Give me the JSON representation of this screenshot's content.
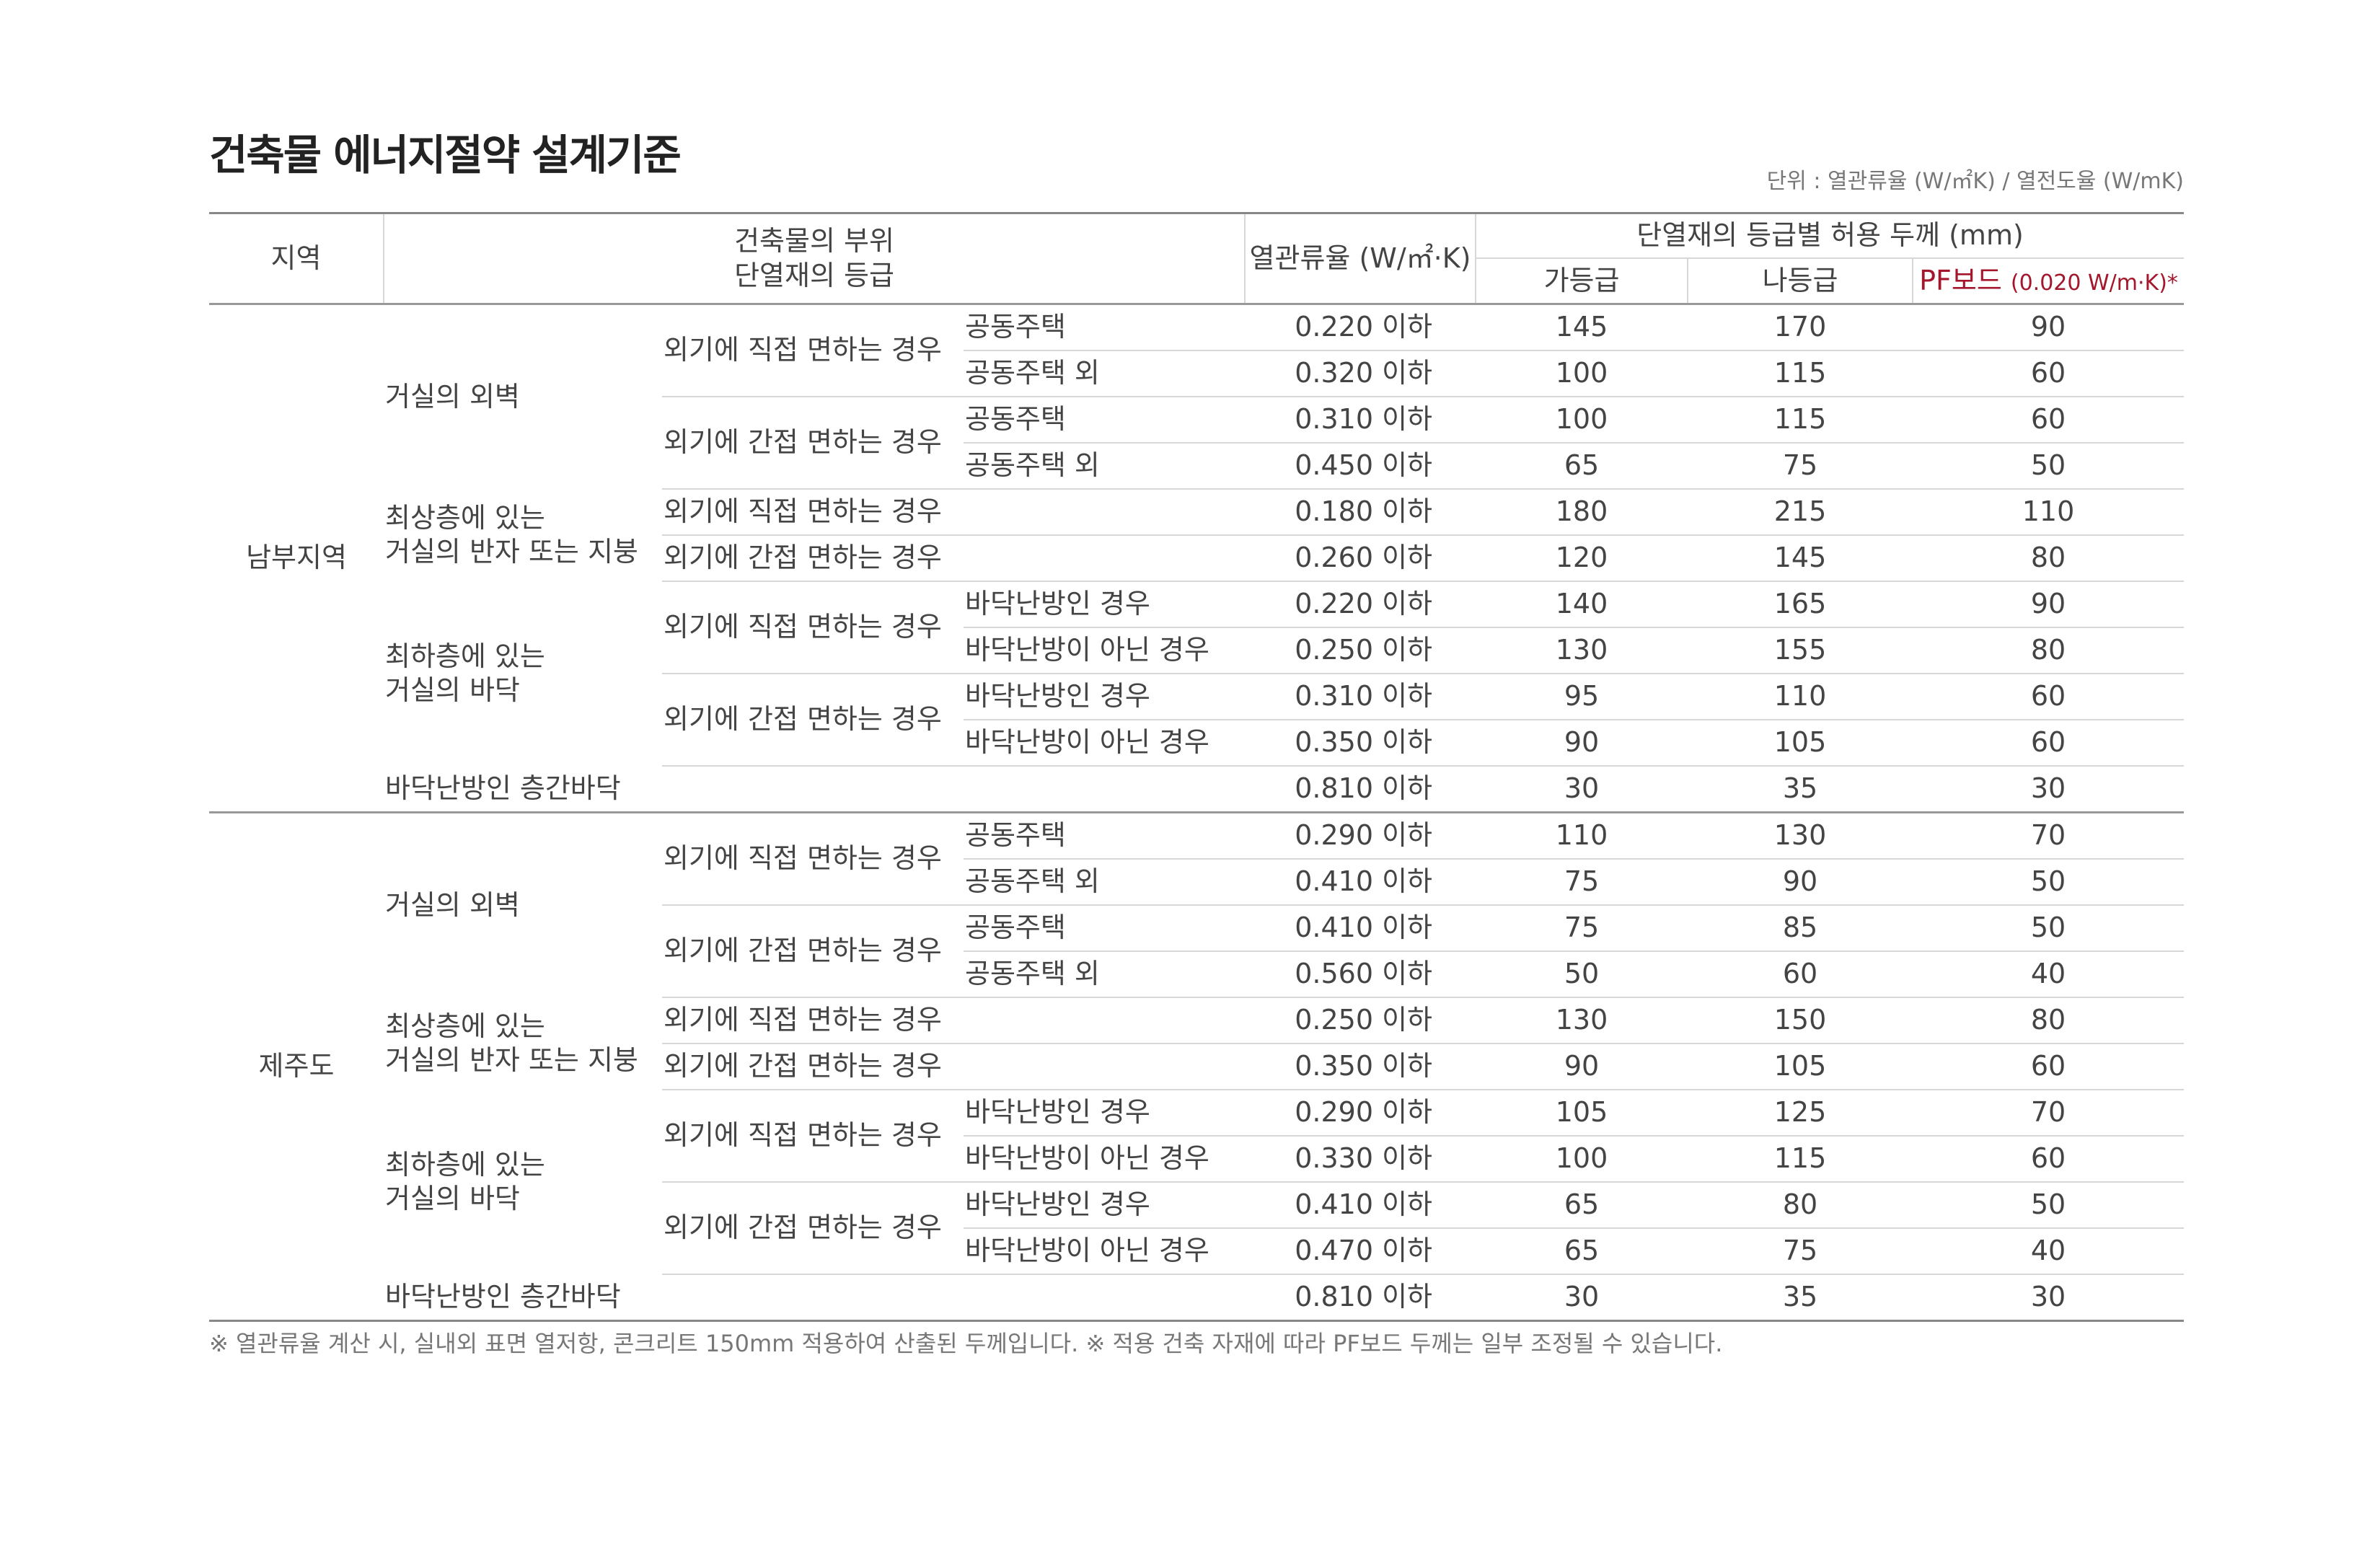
{
  "title": "건축물 에너지절약 설계기준",
  "unit_note": "단위 : 열관류율 (W/㎡K) / 열전도율 (W/mK)",
  "header": {
    "region": "지역",
    "part_line1": "건축물의 부위",
    "part_line2": "단열재의 등급",
    "u_value": "열관류율 (W/㎡·K)",
    "thickness_group": "단열재의 등급별 허용 두께 (mm)",
    "grade_ga": "가등급",
    "grade_na": "나등급",
    "pf_board": "PF보드",
    "pf_note": "(0.020 W/m·K)*"
  },
  "regions": [
    {
      "name": "남부지역",
      "groups": [
        {
          "part": "거실의 외벽",
          "subs": [
            {
              "exposure": "외기에 직접 면하는 경우",
              "rows": [
                {
                  "detail": "공동주택",
                  "u": "0.220 이하",
                  "ga": "145",
                  "na": "170",
                  "pf": "90"
                },
                {
                  "detail": "공동주택 외",
                  "u": "0.320 이하",
                  "ga": "100",
                  "na": "115",
                  "pf": "60"
                }
              ]
            },
            {
              "exposure": "외기에 간접 면하는 경우",
              "rows": [
                {
                  "detail": "공동주택",
                  "u": "0.310 이하",
                  "ga": "100",
                  "na": "115",
                  "pf": "60"
                },
                {
                  "detail": "공동주택 외",
                  "u": "0.450 이하",
                  "ga": "65",
                  "na": "75",
                  "pf": "50"
                }
              ]
            }
          ]
        },
        {
          "part_line1": "최상층에 있는",
          "part_line2": "거실의 반자 또는 지붕",
          "rows": [
            {
              "exposure": "외기에 직접 면하는 경우",
              "u": "0.180 이하",
              "ga": "180",
              "na": "215",
              "pf": "110"
            },
            {
              "exposure": "외기에 간접 면하는 경우",
              "u": "0.260 이하",
              "ga": "120",
              "na": "145",
              "pf": "80"
            }
          ]
        },
        {
          "part_line1": "최하층에 있는",
          "part_line2": "거실의 바닥",
          "subs": [
            {
              "exposure": "외기에 직접 면하는 경우",
              "rows": [
                {
                  "detail": "바닥난방인 경우",
                  "u": "0.220 이하",
                  "ga": "140",
                  "na": "165",
                  "pf": "90"
                },
                {
                  "detail": "바닥난방이 아닌 경우",
                  "u": "0.250 이하",
                  "ga": "130",
                  "na": "155",
                  "pf": "80"
                }
              ]
            },
            {
              "exposure": "외기에 간접 면하는 경우",
              "rows": [
                {
                  "detail": "바닥난방인 경우",
                  "u": "0.310 이하",
                  "ga": "95",
                  "na": "110",
                  "pf": "60"
                },
                {
                  "detail": "바닥난방이 아닌 경우",
                  "u": "0.350 이하",
                  "ga": "90",
                  "na": "105",
                  "pf": "60"
                }
              ]
            }
          ]
        },
        {
          "part": "바닥난방인 층간바닥",
          "u": "0.810 이하",
          "ga": "30",
          "na": "35",
          "pf": "30"
        }
      ]
    },
    {
      "name": "제주도",
      "groups": [
        {
          "part": "거실의 외벽",
          "subs": [
            {
              "exposure": "외기에 직접 면하는 경우",
              "rows": [
                {
                  "detail": "공동주택",
                  "u": "0.290 이하",
                  "ga": "110",
                  "na": "130",
                  "pf": "70"
                },
                {
                  "detail": "공동주택 외",
                  "u": "0.410 이하",
                  "ga": "75",
                  "na": "90",
                  "pf": "50"
                }
              ]
            },
            {
              "exposure": "외기에 간접 면하는 경우",
              "rows": [
                {
                  "detail": "공동주택",
                  "u": "0.410 이하",
                  "ga": "75",
                  "na": "85",
                  "pf": "50"
                },
                {
                  "detail": "공동주택 외",
                  "u": "0.560 이하",
                  "ga": "50",
                  "na": "60",
                  "pf": "40"
                }
              ]
            }
          ]
        },
        {
          "part_line1": "최상층에 있는",
          "part_line2": "거실의 반자 또는 지붕",
          "rows": [
            {
              "exposure": "외기에 직접 면하는 경우",
              "u": "0.250 이하",
              "ga": "130",
              "na": "150",
              "pf": "80"
            },
            {
              "exposure": "외기에 간접 면하는 경우",
              "u": "0.350 이하",
              "ga": "90",
              "na": "105",
              "pf": "60"
            }
          ]
        },
        {
          "part_line1": "최하층에 있는",
          "part_line2": "거실의 바닥",
          "subs": [
            {
              "exposure": "외기에 직접 면하는 경우",
              "rows": [
                {
                  "detail": "바닥난방인 경우",
                  "u": "0.290 이하",
                  "ga": "105",
                  "na": "125",
                  "pf": "70"
                },
                {
                  "detail": "바닥난방이 아닌 경우",
                  "u": "0.330 이하",
                  "ga": "100",
                  "na": "115",
                  "pf": "60"
                }
              ]
            },
            {
              "exposure": "외기에 간접 면하는 경우",
              "rows": [
                {
                  "detail": "바닥난방인 경우",
                  "u": "0.410 이하",
                  "ga": "65",
                  "na": "80",
                  "pf": "50"
                },
                {
                  "detail": "바닥난방이 아닌 경우",
                  "u": "0.470 이하",
                  "ga": "65",
                  "na": "75",
                  "pf": "40"
                }
              ]
            }
          ]
        },
        {
          "part": "바닥난방인 층간바닥",
          "u": "0.810 이하",
          "ga": "30",
          "na": "35",
          "pf": "30"
        }
      ]
    }
  ],
  "footnote": "※ 열관류율 계산 시, 실내외 표면 열저항, 콘크리트 150mm  적용하여 산출된 두께입니다.  ※ 적용 건축 자재에 따라 PF보드 두께는 일부 조정될 수 있습니다.",
  "colors": {
    "pf_accent": "#a3162c",
    "text": "#444444",
    "rule": "#d7d7d7"
  }
}
